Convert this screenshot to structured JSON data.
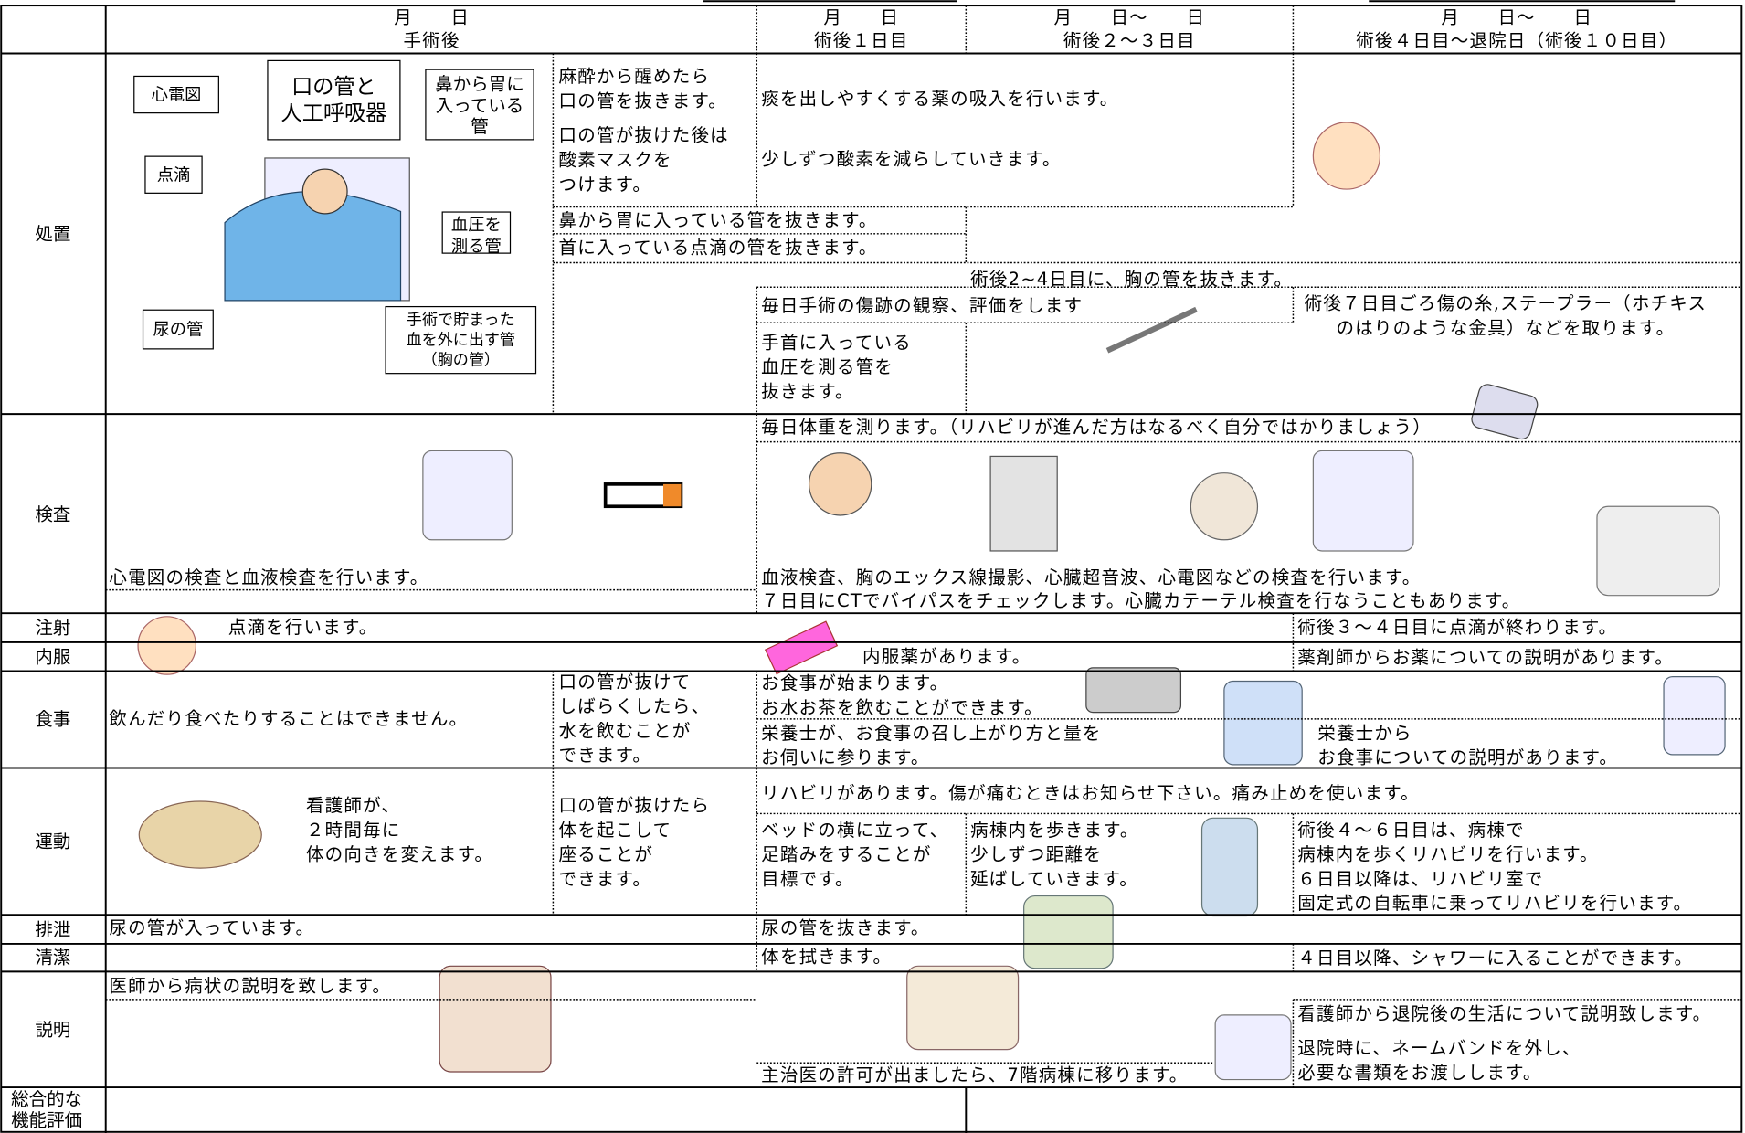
{
  "header": {
    "columns": [
      {
        "date": "月　　日",
        "label": "手術後"
      },
      {
        "date": "月　　日",
        "label": "術後１日目"
      },
      {
        "date": "月　　日～　　日",
        "label": "術後２～３日目"
      },
      {
        "date": "月　　日～　　日",
        "label": "術後４日目～退院日（術後１０日目）"
      }
    ]
  },
  "rows": [
    {
      "label": "処置",
      "items": [
        "心電図",
        "口の管と\n人工呼吸器",
        "鼻から胃に\n入っている\n管",
        "点滴",
        "血圧を\n測る管",
        "尿の管",
        "手術で貯まった\n血を外に出す管\n（胸の管）",
        "麻酔から醒めたら\n口の管を抜きます。",
        "口の管が抜けた後は\n酸素マスクを\nつけます。",
        "痰を出しやすくする薬の吸入を行います。",
        "少しずつ酸素を減らしていきます。",
        "鼻から胃に入っている管を抜きます。",
        "首に入っている点滴の管を抜きます。",
        "術後2~4日目に、胸の管を抜きます。",
        "毎日手術の傷跡の観察、評価をします",
        "手首に入っている\n血圧を測る管を\n抜きます。",
        "術後７日目ごろ傷の糸,ステープラー（ホチキス\nのはりのような金具）などを取ります。"
      ]
    },
    {
      "label": "検査",
      "items": [
        "毎日体重を測ります。（リハビリが進んだ方はなるべく自分ではかりましょう）",
        "心電図の検査と血液検査を行います。",
        "血液検査、胸のエックス線撮影、心臓超音波、心電図などの検査を行います。",
        "７日目にCTでバイパスをチェックします。心臓カテーテル検査を行なうこともあります。"
      ]
    },
    {
      "label": "注射",
      "items": [
        "点滴を行います。",
        "術後３～４日目に点滴が終わります。"
      ]
    },
    {
      "label": "内服",
      "items": [
        "内服薬があります。",
        "薬剤師からお薬についての説明があります。"
      ]
    },
    {
      "label": "食事",
      "items": [
        "飲んだり食べたりすることはできません。",
        "口の管が抜けて\nしばらくしたら、\n水を飲むことが\nできます。",
        "お食事が始まります。\nお水お茶を飲むことができます。",
        "栄養士が、お食事の召し上がり方と量を\nお伺いに参ります。",
        "栄養士から\nお食事についての説明があります。"
      ]
    },
    {
      "label": "運動",
      "items": [
        "看護師が、\n２時間毎に\n体の向きを変えます。",
        "口の管が抜けたら\n体を起こして\n座ることが\nできます。",
        "リハビリがあります。傷が痛むときはお知らせ下さい。痛み止めを使います。",
        "ベッドの横に立って、\n足踏みをすることが\n目標です。",
        "病棟内を歩きます。\n少しずつ距離を\n延ばしていきます。",
        "術後４～６日目は、病棟で\n病棟内を歩くリハビリを行います。\n６日目以降は、リハビリ室で\n固定式の自転車に乗ってリハビリを行います。"
      ]
    },
    {
      "label": "排泄",
      "items": [
        "尿の管が入っています。",
        "尿の管を抜きます。"
      ]
    },
    {
      "label": "清潔",
      "items": [
        "体を拭きます。",
        "４日目以降、シャワーに入ることができます。"
      ]
    },
    {
      "label": "説明",
      "items": [
        "医師から病状の説明を致します。",
        "看護師から退院後の生活について説明致します。",
        "退院時に、ネームバンドを外し、\n必要な書類をお渡しします。",
        "主治医の許可が出ましたら、7階病棟に移ります。"
      ]
    },
    {
      "label": "総合的な\n機能評価",
      "items": []
    }
  ]
}
